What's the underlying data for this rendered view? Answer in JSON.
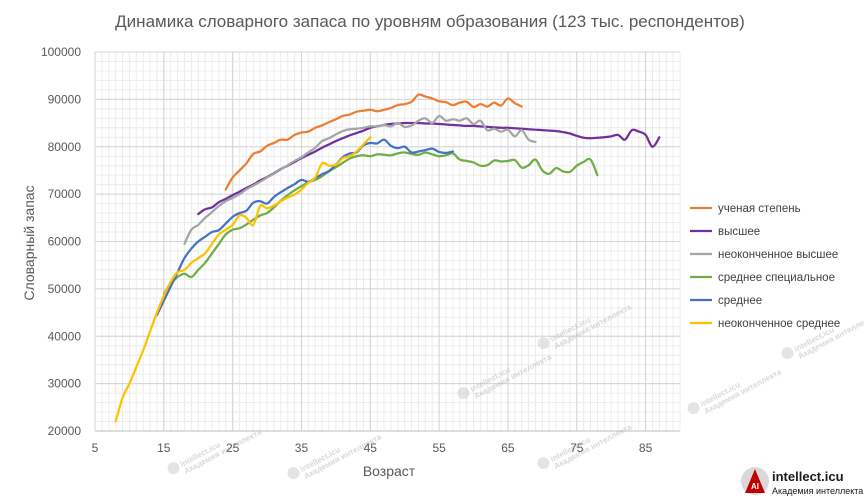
{
  "chart_data": {
    "type": "line",
    "title": "Динамика словарного запаса по уровням образования (123 тыс. респондентов)",
    "xlabel": "Возраст",
    "ylabel": "Словарный запас",
    "xlim": [
      5,
      90
    ],
    "ylim": [
      20000,
      100000
    ],
    "x_ticks": [
      5,
      15,
      25,
      35,
      45,
      55,
      65,
      75,
      85
    ],
    "y_ticks": [
      20000,
      30000,
      40000,
      50000,
      60000,
      70000,
      80000,
      90000,
      100000
    ],
    "grid": true,
    "legend_position": "right",
    "series": [
      {
        "name": "ученая степень",
        "color": "#ed7d31",
        "points": [
          [
            24,
            71000
          ],
          [
            25,
            73500
          ],
          [
            26,
            75000
          ],
          [
            27,
            76500
          ],
          [
            28,
            78500
          ],
          [
            29,
            79000
          ],
          [
            30,
            80200
          ],
          [
            31,
            80800
          ],
          [
            32,
            81500
          ],
          [
            33,
            81500
          ],
          [
            34,
            82500
          ],
          [
            35,
            83000
          ],
          [
            36,
            83200
          ],
          [
            37,
            84000
          ],
          [
            38,
            84500
          ],
          [
            39,
            85200
          ],
          [
            40,
            85800
          ],
          [
            41,
            86500
          ],
          [
            42,
            86800
          ],
          [
            43,
            87400
          ],
          [
            44,
            87600
          ],
          [
            45,
            87800
          ],
          [
            46,
            87500
          ],
          [
            47,
            87800
          ],
          [
            48,
            88200
          ],
          [
            49,
            88800
          ],
          [
            50,
            89000
          ],
          [
            51,
            89500
          ],
          [
            52,
            91000
          ],
          [
            53,
            90600
          ],
          [
            54,
            90200
          ],
          [
            55,
            89600
          ],
          [
            56,
            89400
          ],
          [
            57,
            88800
          ],
          [
            58,
            89300
          ],
          [
            59,
            89500
          ],
          [
            60,
            88400
          ],
          [
            61,
            89000
          ],
          [
            62,
            88500
          ],
          [
            63,
            89300
          ],
          [
            64,
            88700
          ],
          [
            65,
            90200
          ],
          [
            66,
            89200
          ],
          [
            67,
            88500
          ]
        ]
      },
      {
        "name": "высшее",
        "color": "#7030a0",
        "points": [
          [
            20,
            65800
          ],
          [
            21,
            66800
          ],
          [
            22,
            67200
          ],
          [
            23,
            68300
          ],
          [
            24,
            69000
          ],
          [
            25,
            69800
          ],
          [
            26,
            70500
          ],
          [
            27,
            71300
          ],
          [
            28,
            72000
          ],
          [
            29,
            72900
          ],
          [
            30,
            73600
          ],
          [
            31,
            74400
          ],
          [
            32,
            75300
          ],
          [
            33,
            76000
          ],
          [
            34,
            76800
          ],
          [
            35,
            77600
          ],
          [
            36,
            78300
          ],
          [
            37,
            79000
          ],
          [
            38,
            79800
          ],
          [
            39,
            80500
          ],
          [
            40,
            81200
          ],
          [
            41,
            81800
          ],
          [
            42,
            82400
          ],
          [
            43,
            82900
          ],
          [
            44,
            83400
          ],
          [
            45,
            84000
          ],
          [
            46,
            84300
          ],
          [
            47,
            84600
          ],
          [
            48,
            84800
          ],
          [
            49,
            84900
          ],
          [
            50,
            85000
          ],
          [
            51,
            85000
          ],
          [
            52,
            85000
          ],
          [
            53,
            84900
          ],
          [
            54,
            84900
          ],
          [
            55,
            84800
          ],
          [
            56,
            84700
          ],
          [
            57,
            84600
          ],
          [
            58,
            84500
          ],
          [
            59,
            84400
          ],
          [
            60,
            84400
          ],
          [
            61,
            84300
          ],
          [
            62,
            84200
          ],
          [
            63,
            84100
          ],
          [
            64,
            84000
          ],
          [
            65,
            84000
          ],
          [
            66,
            83900
          ],
          [
            67,
            83800
          ],
          [
            68,
            83700
          ],
          [
            69,
            83600
          ],
          [
            70,
            83500
          ],
          [
            71,
            83400
          ],
          [
            72,
            83300
          ],
          [
            73,
            83100
          ],
          [
            74,
            82800
          ],
          [
            75,
            82300
          ],
          [
            76,
            81900
          ],
          [
            77,
            81800
          ],
          [
            78,
            81900
          ],
          [
            79,
            82000
          ],
          [
            80,
            82200
          ],
          [
            81,
            82500
          ],
          [
            82,
            81500
          ],
          [
            83,
            83500
          ],
          [
            84,
            83200
          ],
          [
            85,
            82500
          ],
          [
            86,
            80000
          ],
          [
            87,
            82000
          ]
        ]
      },
      {
        "name": "неоконченное высшее",
        "color": "#a5a5a5",
        "points": [
          [
            18,
            59500
          ],
          [
            19,
            62500
          ],
          [
            20,
            63500
          ],
          [
            21,
            65000
          ],
          [
            22,
            66200
          ],
          [
            23,
            67500
          ],
          [
            24,
            68500
          ],
          [
            25,
            69200
          ],
          [
            26,
            70000
          ],
          [
            27,
            71000
          ],
          [
            28,
            71800
          ],
          [
            29,
            72600
          ],
          [
            30,
            73500
          ],
          [
            31,
            74300
          ],
          [
            32,
            75200
          ],
          [
            33,
            76100
          ],
          [
            34,
            77000
          ],
          [
            35,
            77800
          ],
          [
            36,
            78800
          ],
          [
            37,
            79800
          ],
          [
            38,
            81200
          ],
          [
            39,
            81800
          ],
          [
            40,
            82600
          ],
          [
            41,
            83300
          ],
          [
            42,
            83700
          ],
          [
            43,
            83800
          ],
          [
            44,
            84000
          ],
          [
            45,
            84300
          ],
          [
            46,
            84300
          ],
          [
            47,
            84600
          ],
          [
            48,
            84300
          ],
          [
            49,
            85000
          ],
          [
            50,
            84200
          ],
          [
            51,
            84500
          ],
          [
            52,
            85500
          ],
          [
            53,
            86000
          ],
          [
            54,
            85000
          ],
          [
            55,
            86500
          ],
          [
            56,
            85500
          ],
          [
            57,
            85800
          ],
          [
            58,
            85500
          ],
          [
            59,
            86000
          ],
          [
            60,
            84800
          ],
          [
            61,
            85500
          ],
          [
            62,
            83500
          ],
          [
            63,
            83800
          ],
          [
            64,
            83200
          ],
          [
            65,
            83600
          ],
          [
            66,
            82200
          ],
          [
            67,
            83500
          ],
          [
            68,
            81500
          ],
          [
            69,
            81000
          ]
        ]
      },
      {
        "name": "среднее  специальное",
        "color": "#70ad47",
        "points": [
          [
            15,
            49000
          ],
          [
            16,
            51000
          ],
          [
            17,
            52500
          ],
          [
            18,
            53200
          ],
          [
            19,
            52500
          ],
          [
            20,
            54000
          ],
          [
            21,
            55500
          ],
          [
            22,
            57500
          ],
          [
            23,
            59500
          ],
          [
            24,
            61500
          ],
          [
            25,
            62500
          ],
          [
            26,
            62800
          ],
          [
            27,
            63600
          ],
          [
            28,
            64600
          ],
          [
            29,
            65500
          ],
          [
            30,
            66000
          ],
          [
            31,
            67200
          ],
          [
            32,
            68600
          ],
          [
            33,
            69800
          ],
          [
            34,
            70800
          ],
          [
            35,
            71700
          ],
          [
            36,
            72500
          ],
          [
            37,
            73000
          ],
          [
            38,
            73800
          ],
          [
            39,
            74800
          ],
          [
            40,
            75700
          ],
          [
            41,
            76600
          ],
          [
            42,
            77500
          ],
          [
            43,
            78000
          ],
          [
            44,
            78200
          ],
          [
            45,
            78000
          ],
          [
            46,
            78400
          ],
          [
            47,
            78300
          ],
          [
            48,
            78200
          ],
          [
            49,
            78600
          ],
          [
            50,
            78800
          ],
          [
            51,
            78500
          ],
          [
            52,
            78300
          ],
          [
            53,
            78800
          ],
          [
            54,
            78400
          ],
          [
            55,
            78000
          ],
          [
            56,
            78200
          ],
          [
            57,
            78600
          ],
          [
            58,
            77300
          ],
          [
            59,
            77000
          ],
          [
            60,
            76700
          ],
          [
            61,
            76000
          ],
          [
            62,
            76100
          ],
          [
            63,
            77100
          ],
          [
            64,
            76900
          ],
          [
            65,
            77000
          ],
          [
            66,
            77200
          ],
          [
            67,
            75600
          ],
          [
            68,
            76100
          ],
          [
            69,
            77300
          ],
          [
            70,
            75000
          ],
          [
            71,
            74300
          ],
          [
            72,
            75500
          ],
          [
            73,
            74800
          ],
          [
            74,
            74700
          ],
          [
            75,
            76000
          ],
          [
            76,
            76800
          ],
          [
            77,
            77300
          ],
          [
            78,
            74000
          ]
        ]
      },
      {
        "name": "среднее",
        "color": "#4472c4",
        "points": [
          [
            14,
            44500
          ],
          [
            15,
            47500
          ],
          [
            16,
            50500
          ],
          [
            17,
            53500
          ],
          [
            18,
            56500
          ],
          [
            19,
            58500
          ],
          [
            20,
            60000
          ],
          [
            21,
            61000
          ],
          [
            22,
            62000
          ],
          [
            23,
            62400
          ],
          [
            24,
            63800
          ],
          [
            25,
            65200
          ],
          [
            26,
            66000
          ],
          [
            27,
            66500
          ],
          [
            28,
            68200
          ],
          [
            29,
            68500
          ],
          [
            30,
            68000
          ],
          [
            31,
            69400
          ],
          [
            32,
            70400
          ],
          [
            33,
            71300
          ],
          [
            34,
            72100
          ],
          [
            35,
            73000
          ],
          [
            36,
            72600
          ],
          [
            37,
            73400
          ],
          [
            38,
            74200
          ],
          [
            39,
            74900
          ],
          [
            40,
            76200
          ],
          [
            41,
            77800
          ],
          [
            42,
            78600
          ],
          [
            43,
            78800
          ],
          [
            44,
            80300
          ],
          [
            45,
            80800
          ],
          [
            46,
            80700
          ],
          [
            47,
            81500
          ],
          [
            48,
            80200
          ],
          [
            49,
            79700
          ],
          [
            50,
            80000
          ],
          [
            51,
            78800
          ],
          [
            52,
            79000
          ],
          [
            53,
            79300
          ],
          [
            54,
            79600
          ],
          [
            55,
            78900
          ],
          [
            56,
            78700
          ],
          [
            57,
            79000
          ]
        ]
      },
      {
        "name": "неоконченное  среднее",
        "color": "#ffc000",
        "points": [
          [
            8,
            22000
          ],
          [
            9,
            27000
          ],
          [
            10,
            30000
          ],
          [
            11,
            33500
          ],
          [
            12,
            37000
          ],
          [
            13,
            41000
          ],
          [
            14,
            45000
          ],
          [
            15,
            48500
          ],
          [
            16,
            51500
          ],
          [
            17,
            53500
          ],
          [
            18,
            54000
          ],
          [
            19,
            55500
          ],
          [
            20,
            56500
          ],
          [
            21,
            57500
          ],
          [
            22,
            59500
          ],
          [
            23,
            61500
          ],
          [
            24,
            62500
          ],
          [
            25,
            63500
          ],
          [
            26,
            65500
          ],
          [
            27,
            65000
          ],
          [
            28,
            63500
          ],
          [
            29,
            67500
          ],
          [
            30,
            67000
          ],
          [
            31,
            67600
          ],
          [
            32,
            68500
          ],
          [
            33,
            69300
          ],
          [
            34,
            69900
          ],
          [
            35,
            71000
          ],
          [
            36,
            72400
          ],
          [
            37,
            73500
          ],
          [
            38,
            76500
          ],
          [
            39,
            76000
          ],
          [
            40,
            76200
          ],
          [
            41,
            77600
          ],
          [
            42,
            78000
          ],
          [
            43,
            79000
          ],
          [
            44,
            80500
          ],
          [
            45,
            82000
          ]
        ]
      }
    ]
  },
  "watermark": {
    "repeat_text": "intellect.icu",
    "repeat_subtext": "Академия интеллекта"
  },
  "logo": {
    "icon_letters": "AI",
    "name": "intellect.icu",
    "subtitle": "Академия интеллекта"
  }
}
